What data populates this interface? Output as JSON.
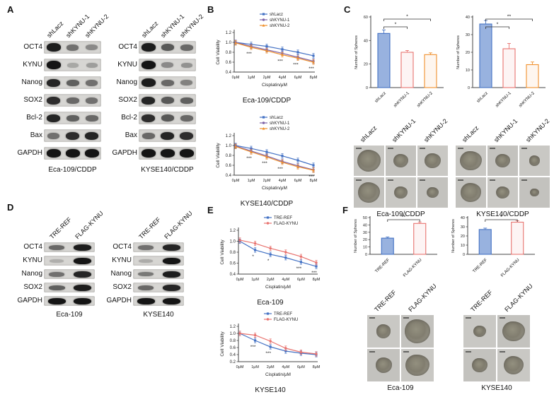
{
  "panels": {
    "A": {
      "label": "A",
      "groups": [
        {
          "caption": "Eca-109/CDDP",
          "columns": [
            "shLacz",
            "shKYNU-1",
            "shKYNU-2"
          ],
          "rows": [
            {
              "label": "OCT4",
              "bands": [
                0.95,
                0.45,
                0.3
              ]
            },
            {
              "label": "KYNU",
              "bands": [
                1.0,
                0.12,
                0.18
              ]
            },
            {
              "label": "Nanog",
              "bands": [
                0.9,
                0.55,
                0.45
              ]
            },
            {
              "label": "SOX2",
              "bands": [
                0.85,
                0.5,
                0.45
              ]
            },
            {
              "label": "Bcl-2",
              "bands": [
                0.9,
                0.55,
                0.5
              ]
            },
            {
              "label": "Bax",
              "bands": [
                0.45,
                0.85,
                0.9
              ]
            },
            {
              "label": "GAPDH",
              "bands": [
                1.0,
                1.0,
                1.0
              ]
            }
          ]
        },
        {
          "caption": "KYSE140/CDDP",
          "columns": [
            "shLacz",
            "shKYNU-1",
            "shKYNU-2"
          ],
          "rows": [
            {
              "label": "OCT4",
              "bands": [
                0.95,
                0.6,
                0.5
              ]
            },
            {
              "label": "KYNU",
              "bands": [
                1.0,
                0.3,
                0.25
              ]
            },
            {
              "label": "Nanog",
              "bands": [
                0.95,
                0.5,
                0.35
              ]
            },
            {
              "label": "SOX2",
              "bands": [
                0.9,
                0.6,
                0.55
              ]
            },
            {
              "label": "Bcl-2",
              "bands": [
                0.85,
                0.6,
                0.5
              ]
            },
            {
              "label": "Bax",
              "bands": [
                0.5,
                0.9,
                0.85
              ]
            },
            {
              "label": "GAPDH",
              "bands": [
                1.0,
                1.0,
                1.0
              ]
            }
          ]
        }
      ]
    },
    "B": {
      "label": "B"
    },
    "C": {
      "label": "C",
      "spheres": [
        {
          "caption": "Eca-109/CDDP",
          "columns": [
            "shLacz",
            "shKYNU-1",
            "shKYNU-2"
          ],
          "sizes": [
            [
              0.78,
              0.5,
              0.52
            ],
            [
              0.72,
              0.42,
              0.38
            ]
          ]
        },
        {
          "caption": "KYSE140/CDDP",
          "columns": [
            "shLacz",
            "shKYNU-1",
            "shKYNU-2"
          ],
          "sizes": [
            [
              0.7,
              0.5,
              0.36
            ],
            [
              0.66,
              0.44,
              0.3
            ]
          ]
        }
      ]
    },
    "D": {
      "label": "D",
      "groups": [
        {
          "caption": "Eca-109",
          "columns": [
            "TRE-REF",
            "FLAG-KYNU"
          ],
          "rows": [
            {
              "label": "OCT4",
              "bands": [
                0.5,
                0.95
              ]
            },
            {
              "label": "KYNU",
              "bands": [
                0.08,
                1.0
              ]
            },
            {
              "label": "Nanog",
              "bands": [
                0.45,
                0.9
              ]
            },
            {
              "label": "SOX2",
              "bands": [
                0.55,
                0.95
              ]
            },
            {
              "label": "GAPDH",
              "bands": [
                1.0,
                1.0
              ]
            }
          ]
        },
        {
          "caption": "KYSE140",
          "columns": [
            "TRE-REF",
            "FLAG-KYNU"
          ],
          "rows": [
            {
              "label": "OCT4",
              "bands": [
                0.45,
                0.9
              ]
            },
            {
              "label": "KYNU",
              "bands": [
                0.1,
                1.0
              ]
            },
            {
              "label": "Nanog",
              "bands": [
                0.4,
                0.95
              ]
            },
            {
              "label": "SOX2",
              "bands": [
                0.5,
                0.9
              ]
            },
            {
              "label": "GAPDH",
              "bands": [
                1.0,
                1.0
              ]
            }
          ]
        }
      ]
    },
    "E": {
      "label": "E"
    },
    "F": {
      "label": "F",
      "spheres": [
        {
          "caption": "Eca-109",
          "columns": [
            "TRE-REF",
            "FLAG-KYNU"
          ],
          "sizes": [
            [
              0.45,
              0.8
            ],
            [
              0.5,
              0.72
            ]
          ]
        },
        {
          "caption": "KYSE140",
          "columns": [
            "TRE-REF",
            "FLAG-KYNU"
          ],
          "sizes": [
            [
              0.4,
              0.68
            ],
            [
              0.46,
              0.62
            ]
          ]
        }
      ]
    }
  },
  "chart_data": [
    {
      "id": "B-top",
      "type": "line",
      "title": "Eca-109/CDDP",
      "xlabel": "Cisplatin/μM",
      "ylabel": "Cell Viability",
      "x": [
        "0μM",
        "1μM",
        "2μM",
        "4μM",
        "6μM",
        "8μM"
      ],
      "ylim": [
        0.4,
        1.2
      ],
      "yticks": [
        0.4,
        0.6,
        0.8,
        1.0,
        1.2
      ],
      "series": [
        {
          "name": "shLacz",
          "color": "#4472c4",
          "values": [
            1.0,
            0.96,
            0.92,
            0.86,
            0.8,
            0.73
          ]
        },
        {
          "name": "shKYNU-1",
          "color": "#7e63a8",
          "values": [
            1.0,
            0.92,
            0.85,
            0.78,
            0.7,
            0.62
          ]
        },
        {
          "name": "shKYNU-2",
          "color": "#f0912d",
          "values": [
            0.99,
            0.9,
            0.83,
            0.75,
            0.68,
            0.6
          ]
        }
      ],
      "sig": [
        {
          "xi": 1,
          "text": "***"
        },
        {
          "xi": 3,
          "text": "***"
        },
        {
          "xi": 4,
          "text": "***"
        },
        {
          "xi": 5,
          "text": "***"
        }
      ]
    },
    {
      "id": "B-bottom",
      "type": "line",
      "title": "KYSE140/CDDP",
      "xlabel": "Cisplatin/μM",
      "ylabel": "Cell Viability",
      "x": [
        "0μM",
        "1μM",
        "2μM",
        "4μM",
        "6μM",
        "8μM"
      ],
      "ylim": [
        0.4,
        1.2
      ],
      "yticks": [
        0.4,
        0.6,
        0.8,
        1.0,
        1.2
      ],
      "series": [
        {
          "name": "shLacz",
          "color": "#4472c4",
          "values": [
            1.0,
            0.94,
            0.87,
            0.79,
            0.7,
            0.6
          ]
        },
        {
          "name": "shKYNU-1",
          "color": "#7e63a8",
          "values": [
            0.99,
            0.89,
            0.79,
            0.68,
            0.59,
            0.51
          ]
        },
        {
          "name": "shKYNU-2",
          "color": "#f0912d",
          "values": [
            0.98,
            0.87,
            0.77,
            0.66,
            0.57,
            0.5
          ]
        }
      ],
      "sig": [
        {
          "xi": 1,
          "text": "***"
        },
        {
          "xi": 2,
          "text": "***"
        },
        {
          "xi": 3,
          "text": "***"
        },
        {
          "xi": 5,
          "text": "***"
        }
      ]
    },
    {
      "id": "E-top",
      "type": "line",
      "title": "Eca-109",
      "xlabel": "Cisplatin/μM",
      "ylabel": "Cell Viability",
      "x": [
        "0μM",
        "1μM",
        "2μM",
        "4μM",
        "6μM",
        "8μM"
      ],
      "ylim": [
        0.4,
        1.2
      ],
      "yticks": [
        0.4,
        0.6,
        0.8,
        1.0,
        1.2
      ],
      "series": [
        {
          "name": "TRE-REF",
          "color": "#4472c4",
          "values": [
            1.0,
            0.84,
            0.76,
            0.7,
            0.62,
            0.54
          ]
        },
        {
          "name": "FLAG-KYNU",
          "color": "#e8736f",
          "values": [
            1.02,
            0.96,
            0.87,
            0.8,
            0.72,
            0.61
          ]
        }
      ],
      "sig": [
        {
          "xi": 1,
          "text": "*"
        },
        {
          "xi": 2,
          "text": "*"
        },
        {
          "xi": 4,
          "text": "***"
        },
        {
          "xi": 5,
          "text": "***"
        }
      ]
    },
    {
      "id": "E-bottom",
      "type": "line",
      "title": "KYSE140",
      "xlabel": "Cisplatin/μM",
      "ylabel": "Cell Viability",
      "x": [
        "0μM",
        "1μM",
        "2μM",
        "4μM",
        "6μM",
        "8μM"
      ],
      "ylim": [
        0.2,
        1.2
      ],
      "yticks": [
        0.2,
        0.4,
        0.6,
        0.8,
        1.0,
        1.2
      ],
      "series": [
        {
          "name": "TRE-REF",
          "color": "#4472c4",
          "values": [
            1.0,
            0.8,
            0.62,
            0.5,
            0.44,
            0.4
          ]
        },
        {
          "name": "FLAG-KYNU",
          "color": "#e8736f",
          "values": [
            1.0,
            0.95,
            0.78,
            0.58,
            0.47,
            0.42
          ]
        }
      ],
      "sig": [
        {
          "xi": 1,
          "text": "***"
        },
        {
          "xi": 2,
          "text": "***"
        }
      ]
    },
    {
      "id": "C-left",
      "type": "bar",
      "ylabel": "Number of Spheres",
      "categories": [
        "shLacz",
        "shKYNU-1",
        "shKYNU-2"
      ],
      "values": [
        46,
        30,
        28
      ],
      "errors": [
        3,
        1.5,
        1.5
      ],
      "ylim": [
        0,
        60
      ],
      "yticks": [
        0,
        20,
        40,
        60
      ],
      "colors": [
        "#4472c4",
        "#e8736f",
        "#f0912d"
      ],
      "fills": [
        0.55,
        0.08,
        0.08
      ],
      "brackets": [
        {
          "from": 0,
          "to": 2,
          "text": "*",
          "level": 0
        },
        {
          "from": 0,
          "to": 1,
          "text": "*",
          "level": 1
        }
      ]
    },
    {
      "id": "C-right",
      "type": "bar",
      "ylabel": "Number of Spheres",
      "categories": [
        "shLacz",
        "shKYNU-1",
        "shKYNU-2"
      ],
      "values": [
        36,
        22,
        13
      ],
      "errors": [
        2,
        3,
        1.5
      ],
      "ylim": [
        0,
        40
      ],
      "yticks": [
        0,
        10,
        20,
        30,
        40
      ],
      "colors": [
        "#4472c4",
        "#e8736f",
        "#f0912d"
      ],
      "fills": [
        0.55,
        0.08,
        0.08
      ],
      "brackets": [
        {
          "from": 0,
          "to": 2,
          "text": "**",
          "level": 0
        },
        {
          "from": 0,
          "to": 1,
          "text": "*",
          "level": 1
        }
      ]
    },
    {
      "id": "F-left",
      "type": "bar",
      "ylabel": "Number of Spheres",
      "categories": [
        "TRE-REF",
        "FLAG-KYNU"
      ],
      "values": [
        22,
        42
      ],
      "errors": [
        1.5,
        2
      ],
      "ylim": [
        0,
        50
      ],
      "yticks": [
        0,
        10,
        20,
        30,
        40,
        50
      ],
      "colors": [
        "#4472c4",
        "#e8736f"
      ],
      "fills": [
        0.55,
        0.08
      ],
      "brackets": [
        {
          "from": 0,
          "to": 1,
          "text": "**",
          "level": 0
        }
      ]
    },
    {
      "id": "F-right",
      "type": "bar",
      "ylabel": "Number of Spheres",
      "categories": [
        "TRE-REF",
        "FLAG-KYNU"
      ],
      "values": [
        27,
        35
      ],
      "errors": [
        1.5,
        1.5
      ],
      "ylim": [
        0,
        40
      ],
      "yticks": [
        0,
        10,
        20,
        30,
        40
      ],
      "colors": [
        "#4472c4",
        "#e8736f"
      ],
      "fills": [
        0.55,
        0.08
      ],
      "brackets": [
        {
          "from": 0,
          "to": 1,
          "text": "*",
          "level": 0
        }
      ]
    }
  ]
}
